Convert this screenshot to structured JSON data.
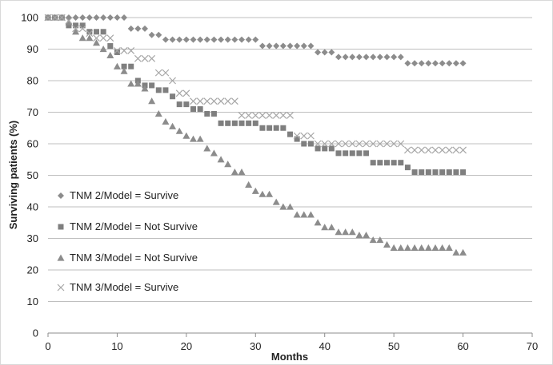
{
  "chart_data": {
    "type": "scatter",
    "title": "",
    "xlabel": "Months",
    "ylabel": "Surviving patients (%)",
    "xlim": [
      0,
      70
    ],
    "ylim": [
      0,
      100
    ],
    "xticks": [
      0,
      10,
      20,
      30,
      40,
      50,
      60,
      70
    ],
    "yticks": [
      0,
      10,
      20,
      30,
      40,
      50,
      60,
      70,
      80,
      90,
      100
    ],
    "grid": "horizontal",
    "legend_position": "bottom-left",
    "series": [
      {
        "name": "TNM 2/Model = Survive",
        "marker": "diamond",
        "color": "#8c8c8c",
        "x": [
          0,
          1,
          2,
          3,
          4,
          5,
          6,
          7,
          8,
          9,
          10,
          11,
          12,
          13,
          14,
          15,
          16,
          17,
          18,
          19,
          20,
          21,
          22,
          23,
          24,
          25,
          26,
          27,
          28,
          29,
          30,
          31,
          32,
          33,
          34,
          35,
          36,
          37,
          38,
          39,
          40,
          41,
          42,
          43,
          44,
          45,
          46,
          47,
          48,
          49,
          50,
          51,
          52,
          53,
          54,
          55,
          56,
          57,
          58,
          59,
          60
        ],
        "y": [
          100,
          100,
          100,
          100,
          100,
          100,
          100,
          100,
          100,
          100,
          100,
          100,
          96.5,
          96.5,
          96.5,
          94.5,
          94.5,
          93,
          93,
          93,
          93,
          93,
          93,
          93,
          93,
          93,
          93,
          93,
          93,
          93,
          93,
          91,
          91,
          91,
          91,
          91,
          91,
          91,
          91,
          89,
          89,
          89,
          87.5,
          87.5,
          87.5,
          87.5,
          87.5,
          87.5,
          87.5,
          87.5,
          87.5,
          87.5,
          85.5,
          85.5,
          85.5,
          85.5,
          85.5,
          85.5,
          85.5,
          85.5,
          85.5
        ]
      },
      {
        "name": "TNM 2/Model = Not Survive",
        "marker": "square",
        "color": "#7f7f7f",
        "x": [
          0,
          1,
          2,
          3,
          4,
          5,
          6,
          7,
          8,
          9,
          10,
          11,
          12,
          13,
          14,
          15,
          16,
          17,
          18,
          19,
          20,
          21,
          22,
          23,
          24,
          25,
          26,
          27,
          28,
          29,
          30,
          31,
          32,
          33,
          34,
          35,
          36,
          37,
          38,
          39,
          40,
          41,
          42,
          43,
          44,
          45,
          46,
          47,
          48,
          49,
          50,
          51,
          52,
          53,
          54,
          55,
          56,
          57,
          58,
          59,
          60
        ],
        "y": [
          100,
          100,
          100,
          97.5,
          97.5,
          97.5,
          95.5,
          95.5,
          95.5,
          91,
          89,
          84.5,
          84.5,
          80,
          78.5,
          78.5,
          77,
          77,
          75,
          72.5,
          72.5,
          71,
          71,
          69.5,
          69.5,
          66.5,
          66.5,
          66.5,
          66.5,
          66.5,
          66.5,
          65,
          65,
          65,
          65,
          63,
          61.5,
          60,
          60,
          58.5,
          58.5,
          58.5,
          57,
          57,
          57,
          57,
          57,
          54,
          54,
          54,
          54,
          54,
          52.5,
          51,
          51,
          51,
          51,
          51,
          51,
          51,
          51
        ]
      },
      {
        "name": "TNM 3/Model = Not Survive",
        "marker": "triangle",
        "color": "#8c8c8c",
        "x": [
          0,
          1,
          2,
          3,
          4,
          5,
          6,
          7,
          8,
          9,
          10,
          11,
          12,
          13,
          14,
          15,
          16,
          17,
          18,
          19,
          20,
          21,
          22,
          23,
          24,
          25,
          26,
          27,
          28,
          29,
          30,
          31,
          32,
          33,
          34,
          35,
          36,
          37,
          38,
          39,
          40,
          41,
          42,
          43,
          44,
          45,
          46,
          47,
          48,
          49,
          50,
          51,
          52,
          53,
          54,
          55,
          56,
          57,
          58,
          59,
          60
        ],
        "y": [
          100,
          100,
          100,
          98.5,
          95.5,
          93.5,
          93.5,
          92,
          90,
          88,
          84.5,
          83,
          79,
          79,
          77.5,
          73.5,
          69.5,
          67,
          65.5,
          64,
          62.5,
          61.5,
          61.5,
          58.5,
          57,
          55,
          53.5,
          51,
          51,
          47,
          45,
          44,
          44,
          41.5,
          40,
          40,
          37.5,
          37.5,
          37.5,
          35,
          33.5,
          33.5,
          32,
          32,
          32,
          31,
          31,
          29.5,
          29.5,
          28,
          27,
          27,
          27,
          27,
          27,
          27,
          27,
          27,
          27,
          25.5,
          25.5
        ]
      },
      {
        "name": "TNM 3/Model = Survive",
        "marker": "x",
        "color": "#a6a6a6",
        "x": [
          0,
          1,
          2,
          3,
          4,
          5,
          6,
          7,
          8,
          9,
          10,
          11,
          12,
          13,
          14,
          15,
          16,
          17,
          18,
          19,
          20,
          21,
          22,
          23,
          24,
          25,
          26,
          27,
          28,
          29,
          30,
          31,
          32,
          33,
          34,
          35,
          36,
          37,
          38,
          39,
          40,
          41,
          42,
          43,
          44,
          45,
          46,
          47,
          48,
          49,
          50,
          51,
          52,
          53,
          54,
          55,
          56,
          57,
          58,
          59,
          60
        ],
        "y": [
          100,
          100,
          100,
          99,
          96.5,
          96.5,
          95,
          93.5,
          93.5,
          93.5,
          89.5,
          89.5,
          89.5,
          87,
          87,
          87,
          82.5,
          82.5,
          80,
          76,
          76,
          73.5,
          73.5,
          73.5,
          73.5,
          73.5,
          73.5,
          73.5,
          69,
          69,
          69,
          69,
          69,
          69,
          69,
          69,
          62.5,
          62.5,
          62.5,
          60,
          60,
          60,
          60,
          60,
          60,
          60,
          60,
          60,
          60,
          60,
          60,
          60,
          58,
          58,
          58,
          58,
          58,
          58,
          58,
          58,
          58
        ]
      }
    ]
  }
}
